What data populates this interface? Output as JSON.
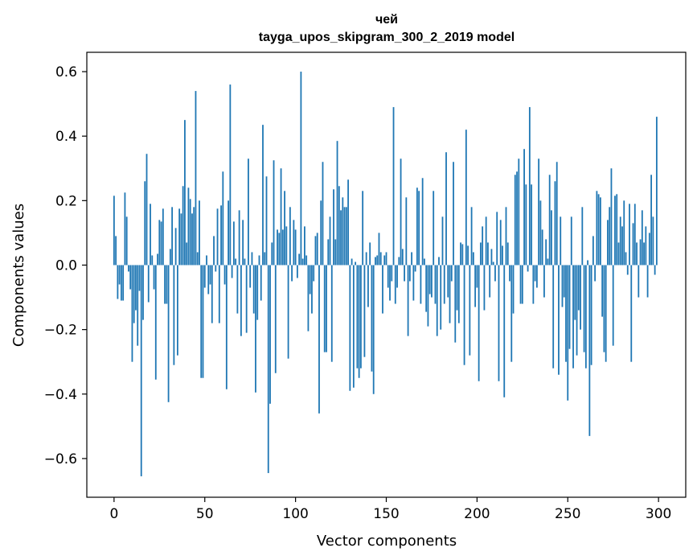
{
  "chart_data": {
    "type": "bar",
    "title_line1": "чей",
    "title_line2": "tayga_upos_skipgram_300_2_2019 model",
    "xlabel": "Vector components",
    "ylabel": "Components values",
    "xlim": [
      -15,
      315
    ],
    "ylim": [
      -0.72,
      0.66
    ],
    "x_ticks": [
      0,
      50,
      100,
      150,
      200,
      250,
      300
    ],
    "x_tick_labels": [
      "0",
      "50",
      "100",
      "150",
      "200",
      "250",
      "300"
    ],
    "y_ticks": [
      0.6,
      0.4,
      0.2,
      0.0,
      -0.2,
      -0.4,
      -0.6
    ],
    "y_tick_labels": [
      "0.6",
      "0.4",
      "0.2",
      "0.0",
      "−0.2",
      "−0.4",
      "−0.6"
    ],
    "bar_color": "#1f77b4",
    "grid": false,
    "values": [
      0.215,
      0.09,
      -0.105,
      -0.06,
      -0.11,
      -0.11,
      0.225,
      0.15,
      -0.02,
      -0.075,
      -0.3,
      -0.18,
      -0.14,
      -0.25,
      -0.08,
      -0.655,
      -0.17,
      0.26,
      0.345,
      -0.115,
      0.19,
      0.03,
      -0.075,
      -0.355,
      0.035,
      0.14,
      0.135,
      0.175,
      -0.12,
      -0.12,
      -0.425,
      0.05,
      0.18,
      -0.31,
      0.115,
      -0.28,
      0.175,
      0.16,
      0.245,
      0.45,
      0.07,
      0.24,
      0.205,
      0.16,
      0.18,
      0.54,
      0.04,
      0.2,
      -0.35,
      -0.35,
      -0.07,
      0.03,
      -0.09,
      -0.06,
      -0.18,
      0.09,
      -0.02,
      0.175,
      -0.18,
      0.185,
      0.29,
      -0.06,
      -0.385,
      0.2,
      0.56,
      -0.04,
      0.135,
      0.02,
      -0.15,
      0.17,
      -0.22,
      0.14,
      0.02,
      -0.21,
      0.33,
      -0.07,
      0.04,
      -0.15,
      -0.395,
      -0.17,
      0.03,
      -0.11,
      0.435,
      0.04,
      0.275,
      -0.645,
      -0.43,
      0.07,
      0.325,
      -0.335,
      0.11,
      0.1,
      0.3,
      0.11,
      0.23,
      0.12,
      -0.29,
      0.18,
      -0.05,
      0.14,
      0.11,
      -0.04,
      0.035,
      0.6,
      0.02,
      0.12,
      0.03,
      -0.205,
      -0.09,
      -0.15,
      -0.05,
      0.09,
      0.1,
      -0.46,
      0.2,
      0.32,
      -0.27,
      -0.27,
      0.08,
      0.15,
      -0.3,
      0.235,
      0.08,
      0.385,
      0.245,
      0.17,
      0.21,
      0.18,
      0.18,
      0.265,
      -0.39,
      0.02,
      -0.38,
      0.01,
      -0.32,
      -0.35,
      -0.32,
      0.23,
      -0.285,
      0.04,
      -0.13,
      0.07,
      -0.33,
      -0.4,
      0.025,
      0.03,
      0.1,
      0.04,
      -0.15,
      0.03,
      0.04,
      -0.07,
      -0.11,
      -0.05,
      0.49,
      -0.12,
      -0.07,
      0.025,
      0.33,
      0.05,
      -0.05,
      0.21,
      -0.22,
      -0.05,
      0.04,
      -0.11,
      -0.02,
      0.24,
      0.23,
      -0.12,
      0.27,
      0.02,
      -0.145,
      -0.19,
      -0.09,
      -0.1,
      0.23,
      -0.12,
      -0.22,
      0.025,
      -0.2,
      0.15,
      -0.12,
      0.35,
      -0.1,
      -0.18,
      -0.05,
      0.32,
      -0.24,
      -0.14,
      -0.18,
      0.07,
      0.065,
      -0.31,
      0.42,
      0.06,
      -0.28,
      0.18,
      0.04,
      -0.13,
      -0.07,
      -0.36,
      0.07,
      0.12,
      -0.14,
      0.15,
      0.07,
      -0.1,
      0.05,
      0.01,
      -0.05,
      0.165,
      -0.36,
      0.14,
      0.06,
      -0.41,
      0.18,
      0.07,
      -0.05,
      -0.3,
      -0.15,
      0.28,
      0.29,
      0.33,
      -0.12,
      -0.12,
      0.36,
      0.25,
      -0.02,
      0.49,
      0.25,
      -0.12,
      -0.05,
      -0.07,
      0.33,
      0.2,
      0.11,
      -0.1,
      0.08,
      0.02,
      0.28,
      0.17,
      -0.32,
      0.26,
      0.32,
      -0.34,
      0.15,
      -0.13,
      -0.1,
      -0.3,
      -0.42,
      -0.26,
      0.15,
      -0.32,
      -0.17,
      -0.28,
      -0.14,
      -0.2,
      0.18,
      -0.27,
      -0.32,
      0.015,
      -0.53,
      -0.31,
      0.09,
      -0.05,
      0.23,
      0.22,
      0.21,
      -0.16,
      -0.27,
      -0.3,
      0.14,
      0.18,
      0.3,
      -0.25,
      0.215,
      0.22,
      0.07,
      0.15,
      0.12,
      0.2,
      0.04,
      -0.03,
      0.19,
      -0.3,
      0.13,
      0.19,
      0.07,
      -0.1,
      0.08,
      0.17,
      0.07,
      0.12,
      -0.1,
      0.1,
      0.28,
      0.15,
      -0.03,
      0.46
    ]
  }
}
